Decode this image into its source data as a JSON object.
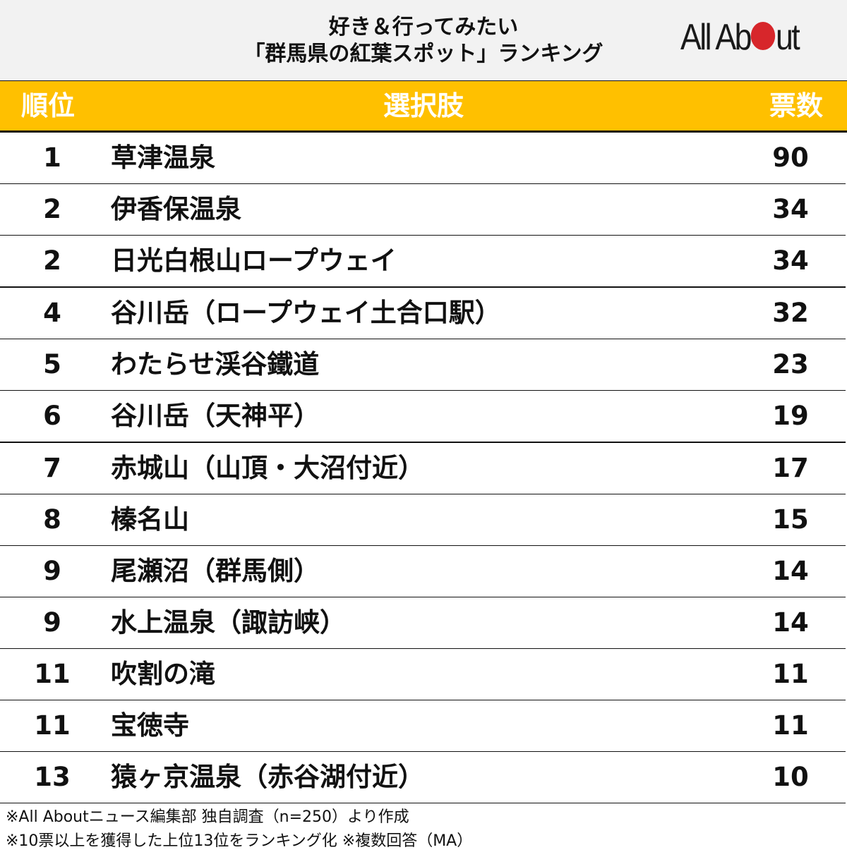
{
  "title": {
    "line1": "好き＆行ってみたい",
    "line2": "「群馬県の紅葉スポット」ランキング"
  },
  "logo": {
    "prefix": "All Ab",
    "suffix": "ut",
    "dot_color": "#d7262b"
  },
  "colors": {
    "header_bg": "#ffc000",
    "header_text": "#ffffff",
    "title_bg": "#f2f2f2"
  },
  "table": {
    "headers": {
      "rank": "順位",
      "choice": "選択肢",
      "votes": "票数"
    },
    "rows": [
      {
        "rank": "1",
        "name": "草津温泉",
        "votes": "90"
      },
      {
        "rank": "2",
        "name": "伊香保温泉",
        "votes": "34"
      },
      {
        "rank": "2",
        "name": "日光白根山ロープウェイ",
        "votes": "34"
      },
      {
        "rank": "4",
        "name": "谷川岳（ロープウェイ土合口駅）",
        "votes": "32"
      },
      {
        "rank": "5",
        "name": "わたらせ渓谷鐵道",
        "votes": "23"
      },
      {
        "rank": "6",
        "name": "谷川岳（天神平）",
        "votes": "19"
      },
      {
        "rank": "7",
        "name": "赤城山（山頂・大沼付近）",
        "votes": "17"
      },
      {
        "rank": "8",
        "name": "榛名山",
        "votes": "15"
      },
      {
        "rank": "9",
        "name": "尾瀬沼（群馬側）",
        "votes": "14"
      },
      {
        "rank": "9",
        "name": "水上温泉（諏訪峡）",
        "votes": "14"
      },
      {
        "rank": "11",
        "name": "吹割の滝",
        "votes": "11"
      },
      {
        "rank": "11",
        "name": "宝徳寺",
        "votes": "11"
      },
      {
        "rank": "13",
        "name": "猿ヶ京温泉（赤谷湖付近）",
        "votes": "10"
      }
    ]
  },
  "notes": [
    "※All Aboutニュース編集部 独自調査（n=250）より作成",
    "※10票以上を獲得した上位13位をランキング化 ※複数回答（MA）"
  ],
  "chart_data": {
    "type": "table",
    "title": "好き＆行ってみたい「群馬県の紅葉スポット」ランキング",
    "columns": [
      "順位",
      "選択肢",
      "票数"
    ],
    "categories": [
      "草津温泉",
      "伊香保温泉",
      "日光白根山ロープウェイ",
      "谷川岳（ロープウェイ土合口駅）",
      "わたらせ渓谷鐵道",
      "谷川岳（天神平）",
      "赤城山（山頂・大沼付近）",
      "榛名山",
      "尾瀬沼（群馬側）",
      "水上温泉（諏訪峡）",
      "吹割の滝",
      "宝徳寺",
      "猿ヶ京温泉（赤谷湖付近）"
    ],
    "ranks": [
      1,
      2,
      2,
      4,
      5,
      6,
      7,
      8,
      9,
      9,
      11,
      11,
      13
    ],
    "values": [
      90,
      34,
      34,
      32,
      23,
      19,
      17,
      15,
      14,
      14,
      11,
      11,
      10
    ],
    "notes": [
      "※All Aboutニュース編集部 独自調査（n=250）より作成",
      "※10票以上を獲得した上位13位をランキング化 ※複数回答（MA）"
    ]
  }
}
